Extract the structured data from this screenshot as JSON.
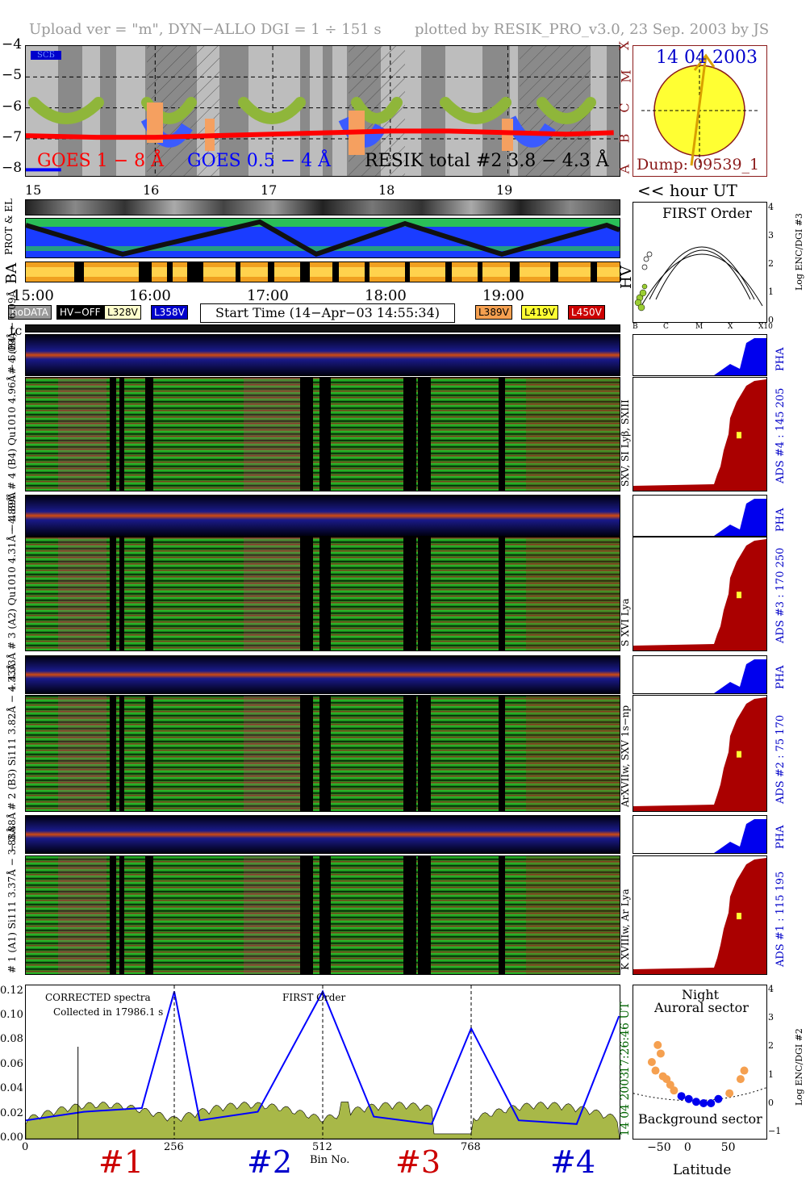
{
  "header": {
    "left": "Upload ver = \"m\", DYN−ALLO DGI =   1 ÷ 151 s",
    "right": "plotted by RESIK_PRO_v3.0, 23 Sep. 2003 by JS"
  },
  "goes_panel": {
    "yticks": [
      "−4",
      "−5",
      "−6",
      "−7",
      "−8"
    ],
    "class_letters": [
      "X",
      "M",
      "C",
      "B",
      "A"
    ],
    "corner_badge": "SCБ",
    "legend_goes18": "GOES 1 − 8 Å",
    "legend_goes054": "GOES 0.5 − 4 Å",
    "legend_resik": "RESIK total #2  3.8 − 4.3 Å",
    "colors": {
      "goes18": "#ff0000",
      "goes054": "#0000ff"
    }
  },
  "sun_panel": {
    "date": "14 04 2003",
    "dump": "Dump: 09539_1"
  },
  "time_axis": {
    "hours_top": [
      "15",
      "16",
      "17",
      "18",
      "19"
    ],
    "unit": "<< hour UT",
    "hours_main": [
      "15:00",
      "16:00",
      "17:00",
      "18:00",
      "19:00"
    ]
  },
  "side_labels": {
    "prot": "PROT & EL",
    "ba": "BA",
    "tc": "tc",
    "hv": "HV"
  },
  "status_legend": {
    "nodata": "noDATA",
    "hvoff": "HV−OFF",
    "l328": "L328V",
    "l358": "L358V",
    "start_time": "Start Time (14−Apr−03 14:55:34)",
    "l389": "L389V",
    "l419": "L419V",
    "l450": "L450V"
  },
  "first_order_panel": {
    "title": "FIRST Order",
    "ylabel": "Log ENC/DGI #3",
    "yticks": [
      "0",
      "1",
      "2",
      "3",
      "4"
    ],
    "xticks": [
      "B",
      "C",
      "M",
      "X",
      "X10"
    ]
  },
  "detectors": [
    {
      "pha_label": "# 4 (B4) − 6.09Å",
      "spec_label": "# 4 (B4) Qu1010 4.96Å − 6.09Å",
      "lines": "SXV, SI Lyβ, SXIII",
      "ads": "ADS #4 :   145 205",
      "pha": "PHA"
    },
    {
      "pha_label": "− 4.89Å",
      "spec_label": "# 3 (A2) Qu1010 4.31Å − 4.89Å",
      "lines": "S XVI Lya",
      "ads": "ADS #3 :   170 250",
      "pha": "PHA"
    },
    {
      "pha_label": "− 4.33Å",
      "spec_label": "# 2 (B3) Si111 3.82Å − 4.33Å",
      "lines": "ArXVIIw, SXV 1s−np",
      "ads": "ADS #2 :   75 170",
      "pha": "PHA"
    },
    {
      "pha_label": "− 3.88Å",
      "spec_label": "# 1 (A1) Si111 3.37Å − 3.88Å",
      "lines": "K XVIIIw, Ar Lya",
      "ads": "ADS #1 :   115 195",
      "pha": "PHA"
    }
  ],
  "spectrum_panel": {
    "note1": "CORRECTED spectra",
    "note2": "Collected in 17986.1 s",
    "note3": "FIRST Order",
    "xlabel": "Bin No.",
    "yticks": [
      "0.00",
      "0.02",
      "0.04",
      "0.06",
      "0.08",
      "0.10",
      "0.12"
    ],
    "xticks": [
      "0",
      "256",
      "512",
      "768"
    ],
    "ut_date": "14 04 2003",
    "ut_time": "17:26:46 UT",
    "detector_labels": [
      "#1",
      "#2",
      "#3",
      "#4"
    ],
    "detector_colors": [
      "#cc0000",
      "#0000cc",
      "#cc0000",
      "#0000cc"
    ]
  },
  "latitude_panel": {
    "title1": "Night",
    "title2": "Auroral sector",
    "bottom": "Background sector",
    "xlabel": "Latitude",
    "ylabel": "Log ENC/DGI #2",
    "xticks": [
      "−50",
      "0",
      "50"
    ],
    "yticks": [
      "−1",
      "0",
      "1",
      "2",
      "3",
      "4"
    ]
  },
  "chart_data": [
    {
      "type": "line",
      "title": "",
      "series": [
        {
          "name": "GOES 1 − 8 Å",
          "x": [
            14.9,
            15.5,
            16.0,
            16.5,
            17.0,
            17.5,
            18.0,
            18.5,
            19.0,
            19.5,
            19.9
          ],
          "values": [
            -6.9,
            -6.95,
            -6.95,
            -6.9,
            -6.85,
            -6.8,
            -6.75,
            -6.75,
            -6.8,
            -6.85,
            -6.8
          ]
        },
        {
          "name": "GOES 0.5 − 4 Å",
          "x": [
            14.9,
            15.2
          ],
          "values": [
            -8.0,
            -8.0
          ]
        }
      ],
      "xlim": [
        14.9,
        19.95
      ],
      "ylim": [
        -8.2,
        -4.0
      ]
    },
    {
      "type": "line",
      "title": "",
      "series": [
        {
          "values": [
            0.02,
            0.02,
            0.02
          ]
        }
      ]
    },
    {
      "type": "line",
      "title": "",
      "series": [
        {
          "x": [
            0,
            100,
            200,
            256,
            300,
            400,
            512,
            600,
            700,
            768,
            850,
            950,
            1023
          ],
          "values": [
            0.015,
            0.022,
            0.025,
            0.12,
            0.015,
            0.022,
            0.12,
            0.018,
            0.012,
            0.09,
            0.015,
            0.012,
            0.1
          ]
        }
      ],
      "xlim": [
        0,
        1024
      ],
      "ylim": [
        0,
        0.125
      ],
      "xlabel": "Bin No."
    },
    {
      "type": "scatter",
      "title": "",
      "series": [
        {
          "x": [
            -60,
            -55,
            -52,
            -48,
            -45,
            -40,
            -35,
            -30,
            -20,
            -10,
            0,
            10,
            20,
            30,
            45,
            60,
            65
          ],
          "values": [
            1.5,
            1.2,
            2.1,
            1.8,
            1.0,
            0.9,
            0.7,
            0.5,
            0.3,
            0.2,
            0.1,
            0.05,
            0.05,
            0.2,
            0.4,
            0.9,
            1.2
          ]
        }
      ],
      "xlim": [
        -85,
        95
      ],
      "ylim": [
        -1.2,
        4.2
      ],
      "xlabel": "Latitude",
      "ylabel": "Log ENC/DGI #2"
    }
  ]
}
